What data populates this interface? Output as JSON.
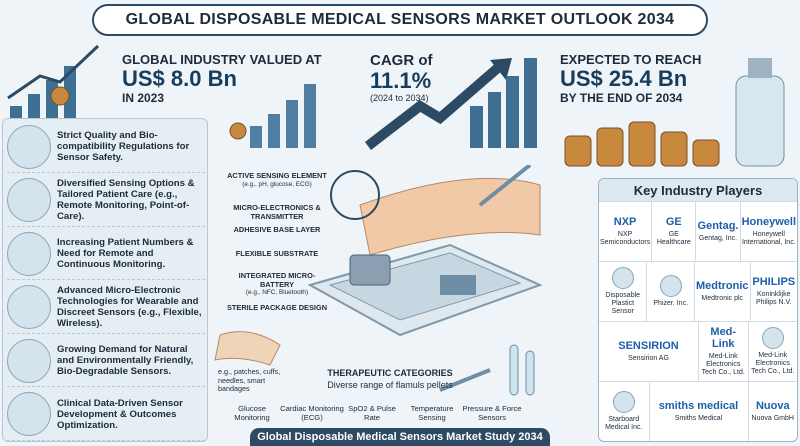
{
  "header": {
    "title": "GLOBAL DISPOSABLE MEDICAL SENSORS MARKET OUTLOOK 2034"
  },
  "stats": [
    {
      "lead": "GLOBAL INDUSTRY VALUED AT",
      "value": "US$ 8.0 Bn",
      "note": "IN 2023"
    },
    {
      "lead": "CAGR of",
      "value": "11.1%",
      "note": "(2024 to 2034)"
    },
    {
      "lead": "EXPECTED TO REACH",
      "value": "US$ 25.4 Bn",
      "note": "BY THE END OF 2034"
    }
  ],
  "drivers": [
    "Strict Quality and Bio-compatibility Regulations for Sensor Safety.",
    "Diversified Sensing Options & Tailored Patient Care (e.g., Remote Monitoring, Point-of-Care).",
    "Increasing Patient Numbers & Need for Remote and Continuous Monitoring.",
    "Advanced Micro-Electronic Technologies for Wearable and Discreet Sensors (e.g., Flexible, Wireless).",
    "Growing Demand for Natural and Environmentally Friendly, Bio-Degradable Sensors.",
    "Clinical Data-Driven Sensor Development & Outcomes Optimization."
  ],
  "components": [
    {
      "label": "ACTIVE SENSING ELEMENT",
      "note": "(e.g., pH, glucose, ECG)"
    },
    {
      "label": "MICRO-ELECTRONICS & TRANSMITTER"
    },
    {
      "label": "ADHESIVE BASE LAYER"
    },
    {
      "label": "FLEXIBLE SUBSTRATE"
    },
    {
      "label": "INTEGRATED MICRO-BATTERY",
      "note": "(e.g., NFC, Bluetooth)"
    },
    {
      "label": "STERILE PACKAGE DESIGN"
    }
  ],
  "formats": "e.g., patches, cuffs, needles, smart bandages",
  "therapeutic": {
    "title": "THERAPEUTIC CATEGORIES",
    "subtitle": "Diverse range of flamuls pellets",
    "categories": [
      "Glucose Monitoring",
      "Cardiac Monitoring (ECG)",
      "SpO2 & Pulse Rate",
      "Temperature Sensing",
      "Pressure & Force Sensors"
    ]
  },
  "players": {
    "title": "Key Industry Players",
    "rows": [
      [
        {
          "logo": "NXP",
          "name": "NXP Semiconductors"
        },
        {
          "logo": "GE",
          "name": "GE Healthcare"
        },
        {
          "logo": "Gentag.",
          "name": "Gentag, Inc."
        },
        {
          "logo": "Honeywell",
          "name": "Honeywell International, Inc."
        }
      ],
      [
        {
          "name": "Disposable Plastict Sensor"
        },
        {
          "name": "Phizer. Inc."
        },
        {
          "logo": "Medtronic",
          "name": "Medtronic plc"
        },
        {
          "logo": "PHILIPS",
          "name": "Koninklijke Philips N.V."
        }
      ],
      [
        {
          "logo": "SENSIRION",
          "name": "Sensirion AG"
        },
        {
          "logo": "Med-Link",
          "name": "Med-Link Electronics Tech Co., Ltd."
        },
        {
          "name": "Med-Link Electronics Tech Co., Ltd."
        }
      ],
      [
        {
          "name": "Starboard Medical Inc."
        },
        {
          "logo": "smiths medical",
          "name": "Smiths Medical"
        },
        {
          "logo": "Nuova",
          "name": "Nuova GmbH"
        }
      ]
    ]
  },
  "footer": "Global Disposable Medical Sensors Market Study 2034"
}
